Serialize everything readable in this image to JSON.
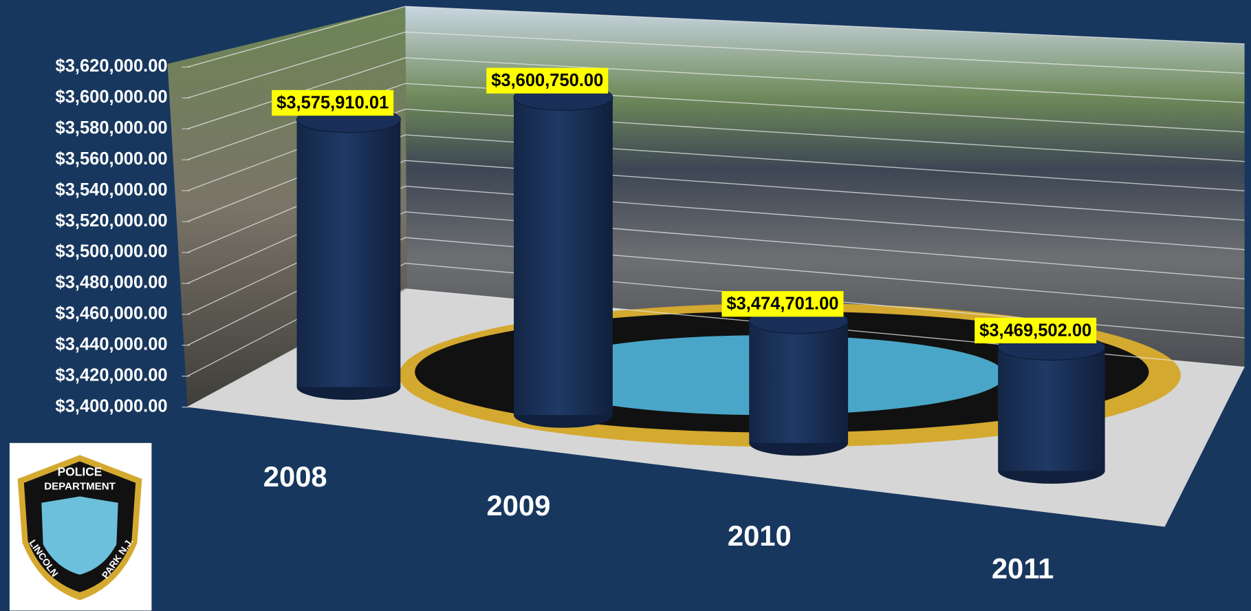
{
  "chart_data": {
    "type": "bar",
    "categories": [
      "2008",
      "2009",
      "2010",
      "2011"
    ],
    "values": [
      3575910.01,
      3600750,
      3474701,
      3469502
    ],
    "value_labels": [
      "$3,575,910.01",
      "$3,600,750.00",
      "$3,474,701.00",
      "$3,469,502.00"
    ],
    "color": "#1a2f57",
    "ylim": [
      3400000,
      3620000
    ],
    "yticks": [
      {
        "value": 3400000,
        "label": "$3,400,000.00"
      },
      {
        "value": 3420000,
        "label": "$3,420,000.00"
      },
      {
        "value": 3440000,
        "label": "$3,440,000.00"
      },
      {
        "value": 3460000,
        "label": "$3,460,000.00"
      },
      {
        "value": 3480000,
        "label": "$3,480,000.00"
      },
      {
        "value": 3500000,
        "label": "$3,500,000.00"
      },
      {
        "value": 3520000,
        "label": "$3,520,000.00"
      },
      {
        "value": 3540000,
        "label": "$3,540,000.00"
      },
      {
        "value": 3560000,
        "label": "$3,560,000.00"
      },
      {
        "value": 3580000,
        "label": "$3,580,000.00"
      },
      {
        "value": 3600000,
        "label": "$3,600,000.00"
      },
      {
        "value": 3620000,
        "label": "$3,620,000.00"
      }
    ],
    "grid": true
  },
  "logo": {
    "lines": [
      "POLICE",
      "DEPARTMENT",
      "LINCOLN",
      "PARK N.J."
    ]
  }
}
